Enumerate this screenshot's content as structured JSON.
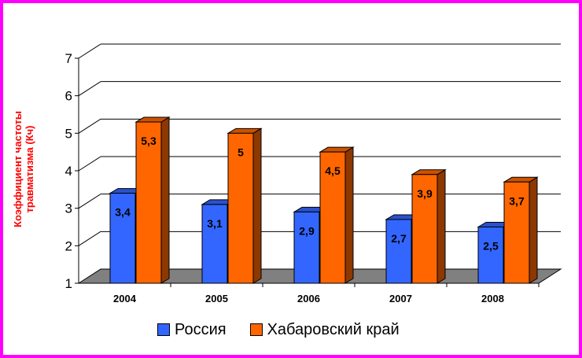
{
  "chart_data": {
    "type": "bar",
    "title": "",
    "ylabel_lines": [
      "Коэффициент частоты",
      "травматизма (Кч)"
    ],
    "xlabel": "",
    "ylim": [
      1,
      7
    ],
    "yticks": [
      "1",
      "2",
      "3",
      "4",
      "5",
      "6",
      "7"
    ],
    "categories": [
      "2004",
      "2005",
      "2006",
      "2007",
      "2008"
    ],
    "grid": true,
    "three_d": true,
    "legend_position": "bottom",
    "series": [
      {
        "name": "Россия",
        "color": "#3366ff",
        "values": [
          3.4,
          3.1,
          2.9,
          2.7,
          2.5
        ],
        "labels": [
          "3,4",
          "3,1",
          "2,9",
          "2,7",
          "2,5"
        ]
      },
      {
        "name": "Хабаровский край",
        "color": "#ff6600",
        "values": [
          5.3,
          5.0,
          4.5,
          3.9,
          3.7
        ],
        "labels": [
          "5,3",
          "5",
          "4,5",
          "3,9",
          "3,7"
        ]
      }
    ],
    "frame_color": "#ff00ff",
    "floor_color": "#808080"
  }
}
